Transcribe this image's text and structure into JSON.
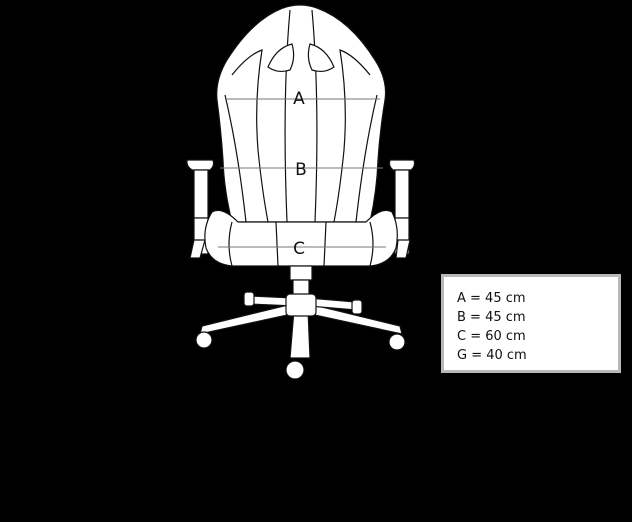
{
  "labels": {
    "a": "A",
    "b": "B",
    "c": "C"
  },
  "legend": {
    "rows": [
      "A = 45 cm",
      "B = 45 cm",
      "C = 60 cm",
      "G = 40 cm"
    ]
  }
}
